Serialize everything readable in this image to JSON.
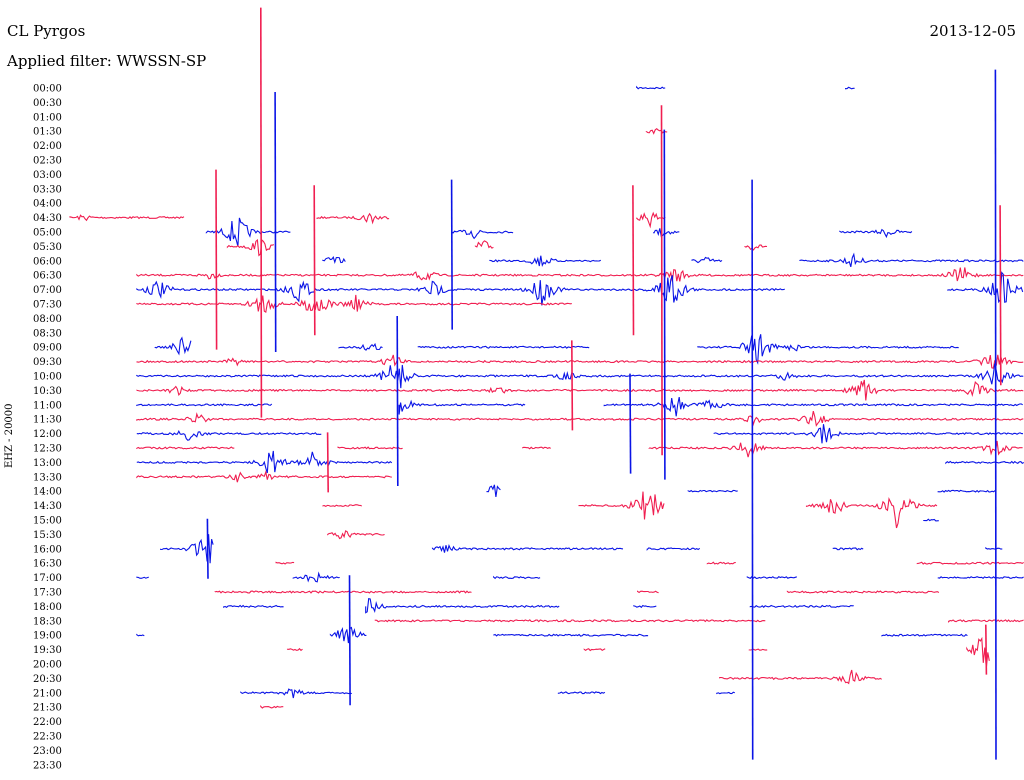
{
  "chart_data": {
    "type": "line",
    "title": "CL Pyrgos",
    "date": "2013-12-05",
    "subtitle": "Applied filter: WWSSN-SP",
    "ylabel": "EHZ - 20000",
    "tick_labels": [
      "00:00",
      "00:30",
      "01:00",
      "01:30",
      "02:00",
      "02:30",
      "03:00",
      "03:30",
      "04:00",
      "04:30",
      "05:00",
      "05:30",
      "06:00",
      "06:30",
      "07:00",
      "07:30",
      "08:00",
      "08:30",
      "09:00",
      "09:30",
      "10:00",
      "10:30",
      "11:00",
      "11:30",
      "12:00",
      "12:30",
      "13:00",
      "13:30",
      "14:00",
      "14:30",
      "15:00",
      "15:30",
      "16:00",
      "16:30",
      "17:00",
      "17:30",
      "18:00",
      "18:30",
      "19:00",
      "19:30",
      "20:00",
      "20:30",
      "21:00",
      "21:30",
      "22:00",
      "22:30",
      "23:00",
      "23:30"
    ],
    "colors": {
      "even_rows": "#0a14e6",
      "odd_rows": "#f01e50",
      "text": "#000000"
    },
    "rows": [
      {
        "label": "00:00",
        "segments": [
          [
            0.594,
            0.624
          ],
          [
            0.813,
            0.823
          ]
        ],
        "events": []
      },
      {
        "label": "00:30",
        "segments": [],
        "events": []
      },
      {
        "label": "01:00",
        "segments": [],
        "events": []
      },
      {
        "label": "01:30",
        "segments": [
          [
            0.604,
            0.627
          ]
        ],
        "events": [
          [
            0.614,
            4
          ]
        ]
      },
      {
        "label": "02:00",
        "segments": [],
        "events": []
      },
      {
        "label": "02:30",
        "segments": [],
        "events": []
      },
      {
        "label": "03:00",
        "segments": [],
        "events": []
      },
      {
        "label": "03:30",
        "segments": [],
        "events": []
      },
      {
        "label": "04:00",
        "segments": [],
        "events": []
      },
      {
        "label": "04:30",
        "segments": [
          [
            0.0,
            0.121
          ],
          [
            0.259,
            0.335
          ],
          [
            0.594,
            0.624
          ]
        ],
        "events": [
          [
            0.015,
            4
          ],
          [
            0.315,
            8
          ],
          [
            0.608,
            10
          ]
        ]
      },
      {
        "label": "05:00",
        "segments": [
          [
            0.143,
            0.232
          ],
          [
            0.4,
            0.465
          ],
          [
            0.612,
            0.64
          ],
          [
            0.807,
            0.884
          ]
        ],
        "events": [
          [
            0.175,
            20
          ],
          [
            0.425,
            8
          ],
          [
            0.621,
            6
          ],
          [
            0.857,
            6
          ]
        ]
      },
      {
        "label": "05:30",
        "segments": [
          [
            0.165,
            0.215
          ],
          [
            0.425,
            0.445
          ],
          [
            0.707,
            0.731
          ]
        ],
        "events": [
          [
            0.198,
            10
          ],
          [
            0.432,
            8
          ],
          [
            0.716,
            4
          ]
        ]
      },
      {
        "label": "06:00",
        "segments": [
          [
            0.265,
            0.29
          ],
          [
            0.44,
            0.557
          ],
          [
            0.652,
            0.685
          ],
          [
            0.765,
            1.0
          ]
        ],
        "events": [
          [
            0.276,
            6
          ],
          [
            0.493,
            8
          ],
          [
            0.665,
            5
          ],
          [
            0.82,
            8
          ]
        ]
      },
      {
        "label": "06:30",
        "segments": [
          [
            0.07,
            1.0
          ]
        ],
        "events": [
          [
            0.146,
            5
          ],
          [
            0.371,
            8
          ],
          [
            0.635,
            10
          ],
          [
            0.934,
            12
          ]
        ]
      },
      {
        "label": "07:00",
        "segments": [
          [
            0.07,
            0.75
          ],
          [
            0.92,
            1.0
          ]
        ],
        "events": [
          [
            0.092,
            12
          ],
          [
            0.24,
            15
          ],
          [
            0.381,
            10
          ],
          [
            0.495,
            18
          ],
          [
            0.629,
            28
          ],
          [
            0.978,
            22
          ]
        ]
      },
      {
        "label": "07:30",
        "segments": [
          [
            0.07,
            0.527
          ]
        ],
        "events": [
          [
            0.202,
            14
          ],
          [
            0.258,
            18
          ],
          [
            0.3,
            10
          ]
        ]
      },
      {
        "label": "08:00",
        "segments": [],
        "events": []
      },
      {
        "label": "08:30",
        "segments": [],
        "events": []
      },
      {
        "label": "09:00",
        "segments": [
          [
            0.089,
            0.127
          ],
          [
            0.282,
            0.328
          ],
          [
            0.365,
            0.545
          ],
          [
            0.658,
            0.933
          ]
        ],
        "events": [
          [
            0.122,
            16
          ],
          [
            0.316,
            6
          ],
          [
            0.72,
            22
          ],
          [
            0.76,
            5
          ]
        ]
      },
      {
        "label": "09:30",
        "segments": [
          [
            0.07,
            1.0
          ]
        ],
        "events": [
          [
            0.172,
            5
          ],
          [
            0.339,
            8
          ],
          [
            0.968,
            14
          ]
        ]
      },
      {
        "label": "10:00",
        "segments": [
          [
            0.07,
            1.0
          ]
        ],
        "events": [
          [
            0.342,
            22
          ],
          [
            0.52,
            6
          ],
          [
            0.75,
            5
          ],
          [
            0.97,
            14
          ]
        ]
      },
      {
        "label": "10:30",
        "segments": [
          [
            0.07,
            1.0
          ]
        ],
        "events": [
          [
            0.112,
            6
          ],
          [
            0.449,
            5
          ],
          [
            0.831,
            14
          ],
          [
            0.95,
            10
          ]
        ]
      },
      {
        "label": "11:00",
        "segments": [
          [
            0.07,
            0.212
          ],
          [
            0.345,
            0.478
          ],
          [
            0.56,
            1.0
          ]
        ],
        "events": [
          [
            0.342,
            18
          ],
          [
            0.634,
            14
          ],
          [
            0.672,
            8
          ]
        ]
      },
      {
        "label": "11:30",
        "segments": [
          [
            0.07,
            1.0
          ]
        ],
        "events": [
          [
            0.134,
            6
          ],
          [
            0.716,
            6
          ],
          [
            0.78,
            10
          ]
        ]
      },
      {
        "label": "12:00",
        "segments": [
          [
            0.07,
            0.264
          ],
          [
            0.675,
            1.0
          ]
        ],
        "events": [
          [
            0.126,
            10
          ],
          [
            0.79,
            12
          ]
        ]
      },
      {
        "label": "12:30",
        "segments": [
          [
            0.07,
            0.173
          ],
          [
            0.281,
            0.349
          ],
          [
            0.474,
            0.504
          ],
          [
            0.607,
            1.0
          ]
        ],
        "events": [
          [
            0.71,
            12
          ],
          [
            0.97,
            10
          ]
        ]
      },
      {
        "label": "13:00",
        "segments": [
          [
            0.07,
            0.338
          ],
          [
            0.918,
            1.0
          ]
        ],
        "events": [
          [
            0.21,
            16
          ],
          [
            0.255,
            12
          ]
        ]
      },
      {
        "label": "13:30",
        "segments": [
          [
            0.07,
            0.338
          ]
        ],
        "events": [
          [
            0.175,
            6
          ],
          [
            0.205,
            5
          ]
        ]
      },
      {
        "label": "14:00",
        "segments": [
          [
            0.437,
            0.452
          ],
          [
            0.648,
            0.7
          ],
          [
            0.91,
            0.97
          ]
        ],
        "events": [
          [
            0.445,
            8
          ]
        ]
      },
      {
        "label": "14:30",
        "segments": [
          [
            0.265,
            0.306
          ],
          [
            0.533,
            0.623
          ],
          [
            0.772,
            0.909
          ]
        ],
        "events": [
          [
            0.607,
            28
          ],
          [
            0.866,
            26
          ],
          [
            0.8,
            14
          ]
        ]
      },
      {
        "label": "15:00",
        "segments": [
          [
            0.895,
            0.912
          ]
        ],
        "events": []
      },
      {
        "label": "15:30",
        "segments": [
          [
            0.27,
            0.33
          ]
        ],
        "events": [
          [
            0.286,
            6
          ]
        ]
      },
      {
        "label": "16:00",
        "segments": [
          [
            0.095,
            0.151
          ],
          [
            0.38,
            0.58
          ],
          [
            0.605,
            0.661
          ],
          [
            0.8,
            0.832
          ],
          [
            0.96,
            0.978
          ]
        ],
        "events": [
          [
            0.143,
            22
          ],
          [
            0.392,
            6
          ]
        ]
      },
      {
        "label": "16:30",
        "segments": [
          [
            0.216,
            0.235
          ],
          [
            0.668,
            0.698
          ],
          [
            0.888,
            1.0
          ]
        ],
        "events": []
      },
      {
        "label": "17:00",
        "segments": [
          [
            0.07,
            0.083
          ],
          [
            0.234,
            0.284
          ],
          [
            0.444,
            0.493
          ],
          [
            0.71,
            0.763
          ],
          [
            0.91,
            1.0
          ]
        ],
        "events": [
          [
            0.256,
            8
          ]
        ]
      },
      {
        "label": "17:30",
        "segments": [
          [
            0.152,
            0.422
          ],
          [
            0.595,
            0.618
          ],
          [
            0.752,
            0.912
          ]
        ],
        "events": []
      },
      {
        "label": "18:00",
        "segments": [
          [
            0.161,
            0.225
          ],
          [
            0.31,
            0.513
          ],
          [
            0.591,
            0.615
          ],
          [
            0.713,
            0.822
          ]
        ],
        "events": [
          [
            0.314,
            10
          ]
        ]
      },
      {
        "label": "18:30",
        "segments": [
          [
            0.32,
            0.73
          ],
          [
            0.921,
            1.0
          ]
        ],
        "events": []
      },
      {
        "label": "19:00",
        "segments": [
          [
            0.07,
            0.078
          ],
          [
            0.273,
            0.312
          ],
          [
            0.444,
            0.606
          ],
          [
            0.851,
            0.942
          ]
        ],
        "events": [
          [
            0.291,
            14
          ]
        ]
      },
      {
        "label": "19:30",
        "segments": [
          [
            0.228,
            0.245
          ],
          [
            0.539,
            0.562
          ],
          [
            0.712,
            0.732
          ],
          [
            0.94,
            0.965
          ]
        ],
        "events": [
          [
            0.96,
            24
          ]
        ]
      },
      {
        "label": "20:00",
        "segments": [],
        "events": []
      },
      {
        "label": "20:30",
        "segments": [
          [
            0.681,
            0.852
          ]
        ],
        "events": [
          [
            0.819,
            10
          ]
        ]
      },
      {
        "label": "21:00",
        "segments": [
          [
            0.179,
            0.296
          ],
          [
            0.512,
            0.561
          ],
          [
            0.678,
            0.698
          ]
        ],
        "events": [
          [
            0.233,
            6
          ]
        ]
      },
      {
        "label": "21:30",
        "segments": [
          [
            0.2,
            0.225
          ]
        ],
        "events": []
      },
      {
        "label": "22:00",
        "segments": [],
        "events": []
      },
      {
        "label": "22:30",
        "segments": [],
        "events": []
      },
      {
        "label": "23:00",
        "segments": [],
        "events": []
      },
      {
        "label": "23:30",
        "segments": [],
        "events": []
      }
    ],
    "spikes": [
      {
        "row": "04:30",
        "x": 0.2,
        "up": 210,
        "down": 200,
        "color": "odd"
      },
      {
        "row": "05:00",
        "x": 0.215,
        "up": 140,
        "down": 120,
        "color": "even"
      },
      {
        "row": "07:00",
        "x": 0.715,
        "up": 110,
        "down": 470,
        "color": "even"
      },
      {
        "row": "07:00",
        "x": 0.97,
        "up": 220,
        "down": 470,
        "color": "even"
      },
      {
        "row": "06:30",
        "x": 0.62,
        "up": 170,
        "down": 180,
        "color": "odd"
      },
      {
        "row": "07:00",
        "x": 0.623,
        "up": 160,
        "down": 190,
        "color": "even"
      },
      {
        "row": "06:30",
        "x": 0.975,
        "up": 70,
        "down": 110,
        "color": "odd"
      },
      {
        "row": "07:00",
        "x": 0.153,
        "up": 120,
        "down": 60,
        "color": "odd"
      },
      {
        "row": "06:30",
        "x": 0.256,
        "up": 90,
        "down": 60,
        "color": "odd"
      },
      {
        "row": "07:00",
        "x": 0.4,
        "up": 110,
        "down": 40,
        "color": "even"
      },
      {
        "row": "06:30",
        "x": 0.59,
        "up": 90,
        "down": 60,
        "color": "odd"
      },
      {
        "row": "10:00",
        "x": 0.343,
        "up": 60,
        "down": 110,
        "color": "even"
      },
      {
        "row": "10:30",
        "x": 0.526,
        "up": 50,
        "down": 40,
        "color": "odd"
      },
      {
        "row": "12:00",
        "x": 0.587,
        "up": 60,
        "down": 40,
        "color": "even"
      },
      {
        "row": "13:00",
        "x": 0.27,
        "up": 30,
        "down": 30,
        "color": "odd"
      },
      {
        "row": "16:00",
        "x": 0.144,
        "up": 30,
        "down": 30,
        "color": "even"
      },
      {
        "row": "19:00",
        "x": 0.293,
        "up": 60,
        "down": 70,
        "color": "even"
      },
      {
        "row": "19:30",
        "x": 0.96,
        "up": 25,
        "down": 25,
        "color": "odd"
      }
    ]
  }
}
